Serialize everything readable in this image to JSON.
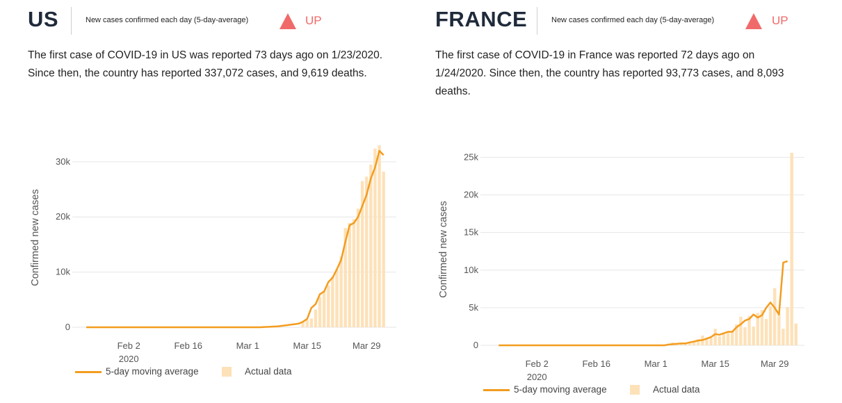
{
  "panels": [
    {
      "country": "US",
      "metric_label": "New cases confirmed each day (5-day-average)",
      "trend": "UP",
      "summary_line1": "The first case of COVID-19 in US was reported 73 days ago on 1/23/2020.",
      "summary_line2": "Since then, the country has reported 337,072 cases, and 9,619 deaths.",
      "summary_line3": "",
      "legend_avg": "5-day moving average",
      "legend_actual": "Actual data"
    },
    {
      "country": "FRANCE",
      "metric_label": "New cases confirmed each day (5-day-average)",
      "trend": "UP",
      "summary_line1": "The first case of COVID-19 in France was reported 72 days ago on",
      "summary_line2": "1/24/2020. Since then, the country has reported 93,773 cases, and 8,093",
      "summary_line3": "deaths.",
      "legend_avg": "5-day moving average",
      "legend_actual": "Actual data"
    }
  ],
  "colors": {
    "line": "#f39c1f",
    "bar": "#fde1b8",
    "trend": "#f06a6a",
    "grid": "#e6e6e6"
  },
  "chart_data": [
    {
      "type": "bar",
      "country": "US",
      "ylabel": "Confirmed new cases",
      "ylim": [
        0,
        32500
      ],
      "yticks": [
        0,
        10000,
        20000,
        30000
      ],
      "ytick_labels": [
        "0",
        "10k",
        "20k",
        "30k"
      ],
      "xlim": [
        "2020-01-22",
        "2020-04-05"
      ],
      "xticks": [
        "2020-02-02",
        "2020-02-16",
        "2020-03-01",
        "2020-03-15",
        "2020-03-29"
      ],
      "xtick_labels": [
        "Feb 2",
        "Feb 16",
        "Mar 1",
        "Mar 15",
        "Mar 29"
      ],
      "xtick_year_label": "2020",
      "grid": true,
      "legend_position": "bottom-left",
      "actual_start": "2020-03-14",
      "actual": [
        900,
        1300,
        1600,
        3200,
        5500,
        6500,
        7600,
        9200,
        10500,
        12800,
        18000,
        18900,
        19600,
        21500,
        26500,
        27300,
        29500,
        32400,
        33000,
        28200
      ],
      "avg_start": "2020-01-23",
      "avg": [
        0,
        0,
        0,
        0,
        0,
        0,
        0,
        0,
        0,
        0,
        0,
        0,
        0,
        0,
        0,
        0,
        0,
        0,
        0,
        0,
        0,
        0,
        0,
        0,
        0,
        0,
        0,
        0,
        0,
        0,
        0,
        0,
        0,
        0,
        0,
        0,
        0,
        0,
        0,
        0,
        0,
        0,
        50,
        80,
        120,
        150,
        250,
        350,
        450,
        550,
        650,
        1000,
        1500,
        3500,
        4200,
        6000,
        6500,
        8200,
        9000,
        10500,
        12200,
        15500,
        18500,
        18900,
        20000,
        22000,
        24000,
        27000,
        29000,
        32000,
        31200
      ]
    },
    {
      "type": "bar",
      "country": "France",
      "ylabel": "Confirmed new cases",
      "ylim": [
        0,
        25500
      ],
      "yticks": [
        0,
        5000,
        10000,
        15000,
        20000,
        25000
      ],
      "ytick_labels": [
        "0",
        "5k",
        "10k",
        "15k",
        "20k",
        "25k"
      ],
      "xlim": [
        "2020-01-22",
        "2020-04-05"
      ],
      "xticks": [
        "2020-02-02",
        "2020-02-16",
        "2020-03-01",
        "2020-03-15",
        "2020-03-29"
      ],
      "xtick_labels": [
        "Feb 2",
        "Feb 16",
        "Mar 1",
        "Mar 15",
        "Mar 29"
      ],
      "xtick_year_label": "2020",
      "grid": true,
      "legend_position": "bottom-left",
      "actual_start": "2020-03-05",
      "actual": [
        400,
        200,
        200,
        300,
        400,
        600,
        800,
        1300,
        800,
        1000,
        2200,
        1200,
        1500,
        1900,
        1900,
        2800,
        3800,
        2400,
        3900,
        2500,
        4300,
        4700,
        3500,
        5200,
        7600,
        4200,
        2200,
        5100,
        25600,
        2900
      ],
      "avg_start": "2020-01-24",
      "avg": [
        0,
        0,
        0,
        0,
        0,
        0,
        0,
        0,
        0,
        0,
        0,
        0,
        0,
        0,
        0,
        0,
        0,
        0,
        0,
        0,
        0,
        0,
        0,
        0,
        0,
        0,
        0,
        0,
        0,
        0,
        0,
        0,
        0,
        0,
        0,
        0,
        0,
        0,
        0,
        0,
        100,
        150,
        200,
        250,
        250,
        400,
        500,
        650,
        700,
        900,
        1100,
        1500,
        1400,
        1600,
        1800,
        1800,
        2400,
        2800,
        3300,
        3500,
        4100,
        3700,
        4000,
        5000,
        5700,
        5000,
        4100,
        11000,
        11200
      ]
    }
  ]
}
